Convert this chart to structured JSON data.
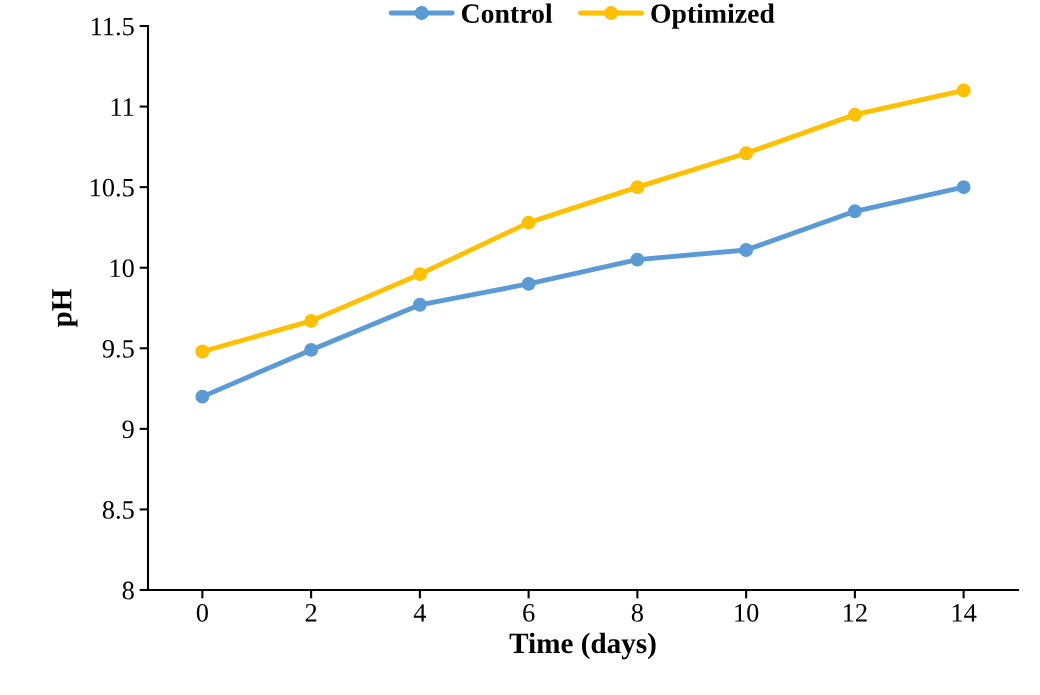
{
  "chart_data": {
    "type": "line",
    "xlabel": "Time (days)",
    "ylabel": "pH",
    "categories": [
      "0",
      "2",
      "4",
      "6",
      "8",
      "10",
      "12",
      "14"
    ],
    "series": [
      {
        "name": "Control",
        "color": "#5b9bd5",
        "values": [
          9.2,
          9.49,
          9.77,
          9.9,
          10.05,
          10.11,
          10.35,
          10.5
        ]
      },
      {
        "name": "Optimized",
        "color": "#ffc000",
        "values": [
          9.48,
          9.67,
          9.96,
          10.28,
          10.5,
          10.71,
          10.95,
          11.1
        ]
      }
    ],
    "ylim": [
      8,
      11.5
    ],
    "yticks": [
      8,
      8.5,
      9,
      9.5,
      10,
      10.5,
      11,
      11.5
    ],
    "grid": false,
    "legend": "top",
    "marker": "circle",
    "line_style": "solid"
  }
}
